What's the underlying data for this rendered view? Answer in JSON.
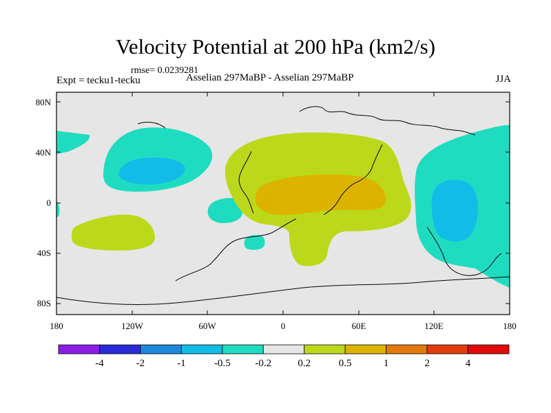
{
  "title": "Velocity Potential at 200 hPa (km2/s)",
  "rmse": "rmse= 0.0239281",
  "experiment": "Expt = tecku1-tecku",
  "subtitle": "Asselian 297MaBP - Asselian 297MaBP",
  "season": "JJA",
  "map": {
    "lat_ticks": [
      "80N",
      "40N",
      "0",
      "40S",
      "80S"
    ],
    "lon_ticks": [
      "180",
      "120W",
      "60W",
      "0",
      "60E",
      "120E",
      "180"
    ],
    "lon_range": [
      -180,
      180
    ],
    "lat_range": [
      -90,
      90
    ],
    "background_color": "#e6e6e6"
  },
  "colorbar": {
    "labels": [
      "-4",
      "-2",
      "-1",
      "-0.5",
      "-0.2",
      "0.2",
      "0.5",
      "1",
      "2",
      "4"
    ],
    "colors": [
      "#8a1ee6",
      "#2a2ad8",
      "#1e88dc",
      "#11bde6",
      "#1fdcc0",
      "#e6e6e6",
      "#bcd81a",
      "#dcb400",
      "#e07a0c",
      "#e03c0c",
      "#e00a0a"
    ]
  },
  "fills": {
    "neg_light": "#1fdcc0",
    "neg_mid": "#11bde6",
    "pos_light": "#bcd81a",
    "pos_mid": "#dcb400"
  }
}
